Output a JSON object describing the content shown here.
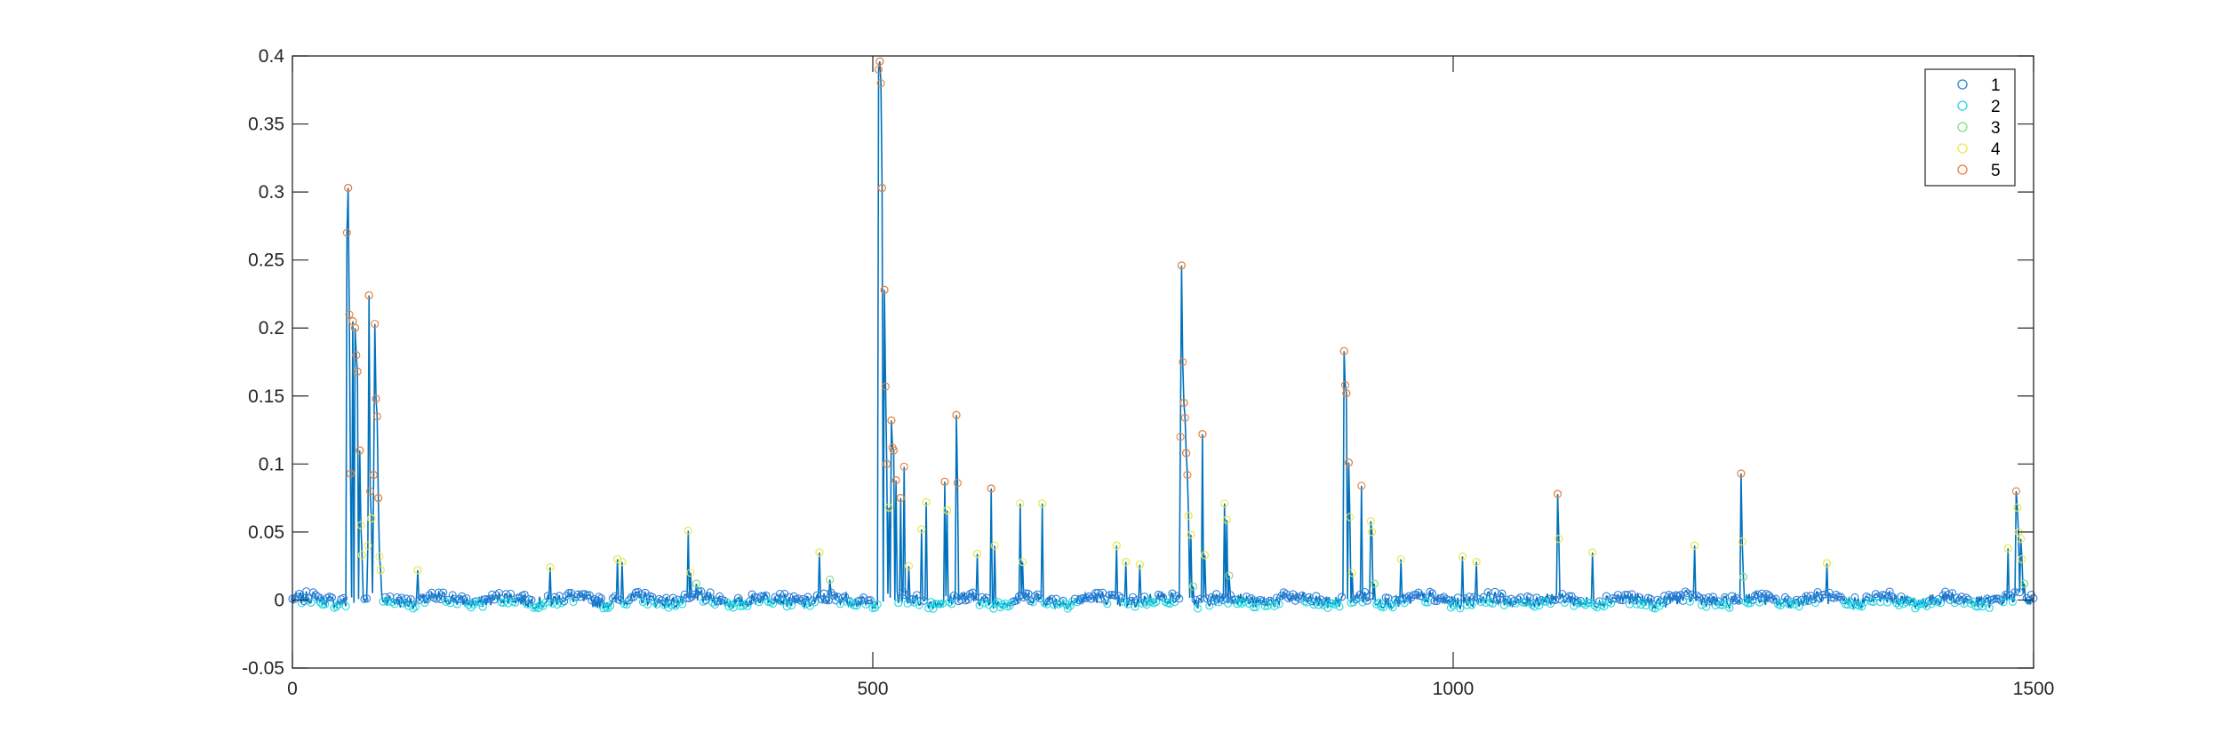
{
  "chart_data": {
    "type": "scatter",
    "title": "",
    "xlabel": "",
    "ylabel": "",
    "xlim": [
      0,
      1500
    ],
    "ylim": [
      -0.05,
      0.4
    ],
    "xticks": [
      0,
      500,
      1000,
      1500
    ],
    "yticks": [
      -0.05,
      0,
      0.05,
      0.1,
      0.15,
      0.2,
      0.25,
      0.3,
      0.35,
      0.4
    ],
    "xtick_labels": [
      "0",
      "500",
      "1000",
      "1500"
    ],
    "ytick_labels": [
      "-0.05",
      "0",
      "0.05",
      "0.1",
      "0.15",
      "0.2",
      "0.25",
      "0.3",
      "0.35",
      "0.4"
    ],
    "grid": false,
    "box": true,
    "legend_position": "top-right",
    "line_color": "#0072BD",
    "marker": "open-circle",
    "series": [
      {
        "name": "1",
        "color": "#2f7fd8"
      },
      {
        "name": "2",
        "color": "#1fd8e0"
      },
      {
        "name": "3",
        "color": "#7fe07f"
      },
      {
        "name": "4",
        "color": "#e8e84a"
      },
      {
        "name": "5",
        "color": "#e87f3a"
      }
    ],
    "n_points": 1500,
    "baseline": 0,
    "peaks": [
      {
        "x": 47,
        "y": 0.27
      },
      {
        "x": 48,
        "y": 0.303
      },
      {
        "x": 49,
        "y": 0.21
      },
      {
        "x": 50,
        "y": 0.093
      },
      {
        "x": 52,
        "y": 0.205
      },
      {
        "x": 54,
        "y": 0.2
      },
      {
        "x": 55,
        "y": 0.18
      },
      {
        "x": 56,
        "y": 0.168
      },
      {
        "x": 58,
        "y": 0.11
      },
      {
        "x": 59,
        "y": 0.055
      },
      {
        "x": 60,
        "y": 0.033
      },
      {
        "x": 65,
        "y": 0.04
      },
      {
        "x": 66,
        "y": 0.224
      },
      {
        "x": 67,
        "y": 0.08
      },
      {
        "x": 68,
        "y": 0.06
      },
      {
        "x": 70,
        "y": 0.092
      },
      {
        "x": 71,
        "y": 0.203
      },
      {
        "x": 72,
        "y": 0.148
      },
      {
        "x": 73,
        "y": 0.135
      },
      {
        "x": 74,
        "y": 0.075
      },
      {
        "x": 75,
        "y": 0.032
      },
      {
        "x": 76,
        "y": 0.022
      },
      {
        "x": 108,
        "y": 0.022
      },
      {
        "x": 222,
        "y": 0.024
      },
      {
        "x": 280,
        "y": 0.03
      },
      {
        "x": 284,
        "y": 0.028
      },
      {
        "x": 341,
        "y": 0.051
      },
      {
        "x": 343,
        "y": 0.02
      },
      {
        "x": 348,
        "y": 0.012
      },
      {
        "x": 454,
        "y": 0.035
      },
      {
        "x": 463,
        "y": 0.015
      },
      {
        "x": 505,
        "y": 0.39
      },
      {
        "x": 506,
        "y": 0.396
      },
      {
        "x": 507,
        "y": 0.38
      },
      {
        "x": 508,
        "y": 0.303
      },
      {
        "x": 510,
        "y": 0.228
      },
      {
        "x": 511,
        "y": 0.157
      },
      {
        "x": 512,
        "y": 0.1
      },
      {
        "x": 514,
        "y": 0.068
      },
      {
        "x": 516,
        "y": 0.132
      },
      {
        "x": 517,
        "y": 0.112
      },
      {
        "x": 518,
        "y": 0.11
      },
      {
        "x": 520,
        "y": 0.088
      },
      {
        "x": 524,
        "y": 0.075
      },
      {
        "x": 527,
        "y": 0.098
      },
      {
        "x": 531,
        "y": 0.025
      },
      {
        "x": 542,
        "y": 0.052
      },
      {
        "x": 546,
        "y": 0.072
      },
      {
        "x": 562,
        "y": 0.087
      },
      {
        "x": 564,
        "y": 0.066
      },
      {
        "x": 572,
        "y": 0.136
      },
      {
        "x": 573,
        "y": 0.086
      },
      {
        "x": 590,
        "y": 0.034
      },
      {
        "x": 602,
        "y": 0.082
      },
      {
        "x": 605,
        "y": 0.04
      },
      {
        "x": 627,
        "y": 0.071
      },
      {
        "x": 629,
        "y": 0.028
      },
      {
        "x": 646,
        "y": 0.071
      },
      {
        "x": 710,
        "y": 0.04
      },
      {
        "x": 718,
        "y": 0.028
      },
      {
        "x": 730,
        "y": 0.026
      },
      {
        "x": 765,
        "y": 0.12
      },
      {
        "x": 766,
        "y": 0.246
      },
      {
        "x": 767,
        "y": 0.175
      },
      {
        "x": 768,
        "y": 0.145
      },
      {
        "x": 769,
        "y": 0.134
      },
      {
        "x": 770,
        "y": 0.108
      },
      {
        "x": 771,
        "y": 0.092
      },
      {
        "x": 772,
        "y": 0.062
      },
      {
        "x": 774,
        "y": 0.048
      },
      {
        "x": 776,
        "y": 0.01
      },
      {
        "x": 784,
        "y": 0.122
      },
      {
        "x": 786,
        "y": 0.033
      },
      {
        "x": 803,
        "y": 0.071
      },
      {
        "x": 805,
        "y": 0.059
      },
      {
        "x": 807,
        "y": 0.018
      },
      {
        "x": 906,
        "y": 0.183
      },
      {
        "x": 907,
        "y": 0.158
      },
      {
        "x": 908,
        "y": 0.152
      },
      {
        "x": 910,
        "y": 0.101
      },
      {
        "x": 911,
        "y": 0.061
      },
      {
        "x": 913,
        "y": 0.02
      },
      {
        "x": 921,
        "y": 0.084
      },
      {
        "x": 929,
        "y": 0.058
      },
      {
        "x": 930,
        "y": 0.05
      },
      {
        "x": 932,
        "y": 0.012
      },
      {
        "x": 955,
        "y": 0.03
      },
      {
        "x": 1008,
        "y": 0.032
      },
      {
        "x": 1020,
        "y": 0.028
      },
      {
        "x": 1090,
        "y": 0.078
      },
      {
        "x": 1091,
        "y": 0.045
      },
      {
        "x": 1120,
        "y": 0.035
      },
      {
        "x": 1208,
        "y": 0.04
      },
      {
        "x": 1248,
        "y": 0.093
      },
      {
        "x": 1249,
        "y": 0.043
      },
      {
        "x": 1250,
        "y": 0.017
      },
      {
        "x": 1322,
        "y": 0.027
      },
      {
        "x": 1478,
        "y": 0.038
      },
      {
        "x": 1485,
        "y": 0.08
      },
      {
        "x": 1486,
        "y": 0.068
      },
      {
        "x": 1487,
        "y": 0.05
      },
      {
        "x": 1489,
        "y": 0.045
      },
      {
        "x": 1490,
        "y": 0.03
      },
      {
        "x": 1492,
        "y": 0.012
      }
    ]
  }
}
